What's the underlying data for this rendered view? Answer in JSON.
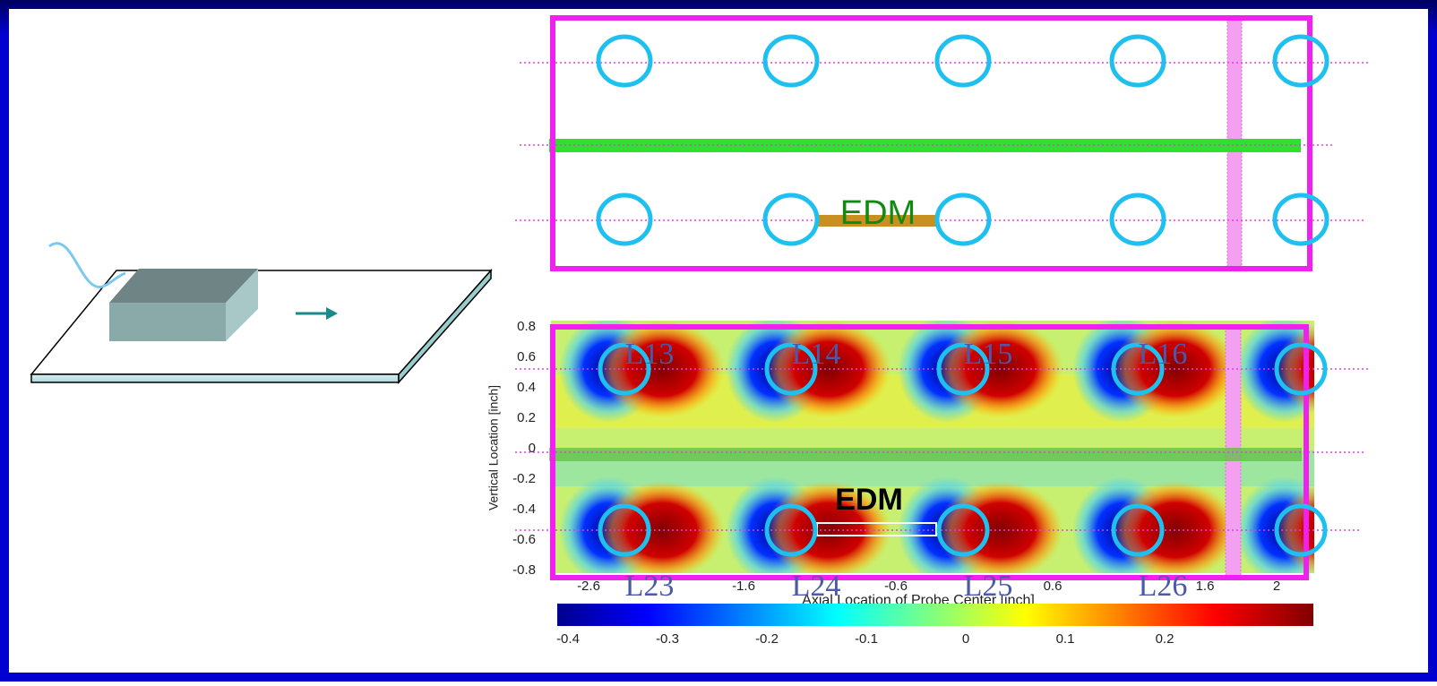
{
  "top_panel": {
    "edm_label": "EDM"
  },
  "heatmap": {
    "sensor_labels_top": [
      "L13",
      "L14",
      "L15",
      "L16"
    ],
    "sensor_labels_bottom": [
      "L23",
      "L24",
      "L25",
      "L26"
    ],
    "edm_label": "EDM",
    "y_axis_label": "Vertical Location [inch]",
    "x_axis_label": "Axial Location of Probe Center [inch]",
    "yticks": [
      0.8,
      0.6,
      0.4,
      0.2,
      0,
      -0.2,
      -0.4,
      -0.6,
      -0.8
    ],
    "xticks": [
      -2.6,
      -1.6,
      -0.6,
      0.6,
      1.6,
      2
    ]
  },
  "colorbar": {
    "ticks": [
      -0.4,
      -0.3,
      -0.2,
      -0.1,
      0,
      0.1,
      0.2
    ]
  }
}
